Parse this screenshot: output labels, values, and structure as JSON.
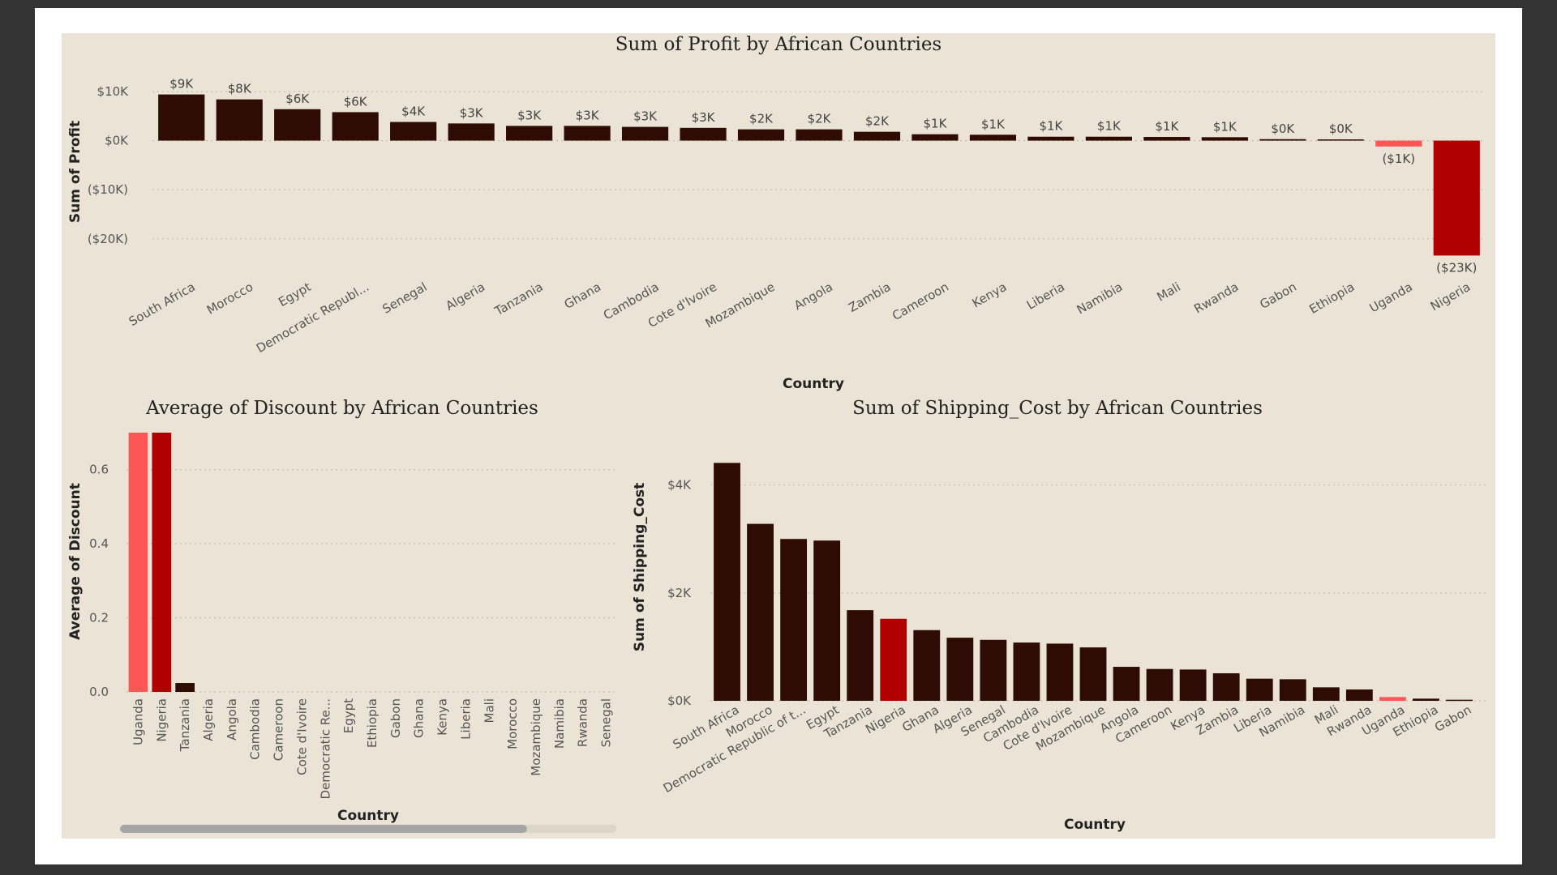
{
  "colors": {
    "page_bg": "#333333",
    "canvas_bg": "#ebe4d6",
    "bar_default": "#2e0c05",
    "bar_highlight_dark": "#b10000",
    "bar_highlight_light": "#fd5657",
    "scrollbar": "#a5a5a5"
  },
  "chart_data": [
    {
      "id": "profit",
      "type": "bar",
      "title": "Sum of Profit by African Countries",
      "xlabel": "Country",
      "ylabel": "Sum of Profit",
      "yticks": [
        10000,
        0,
        -10000,
        -20000
      ],
      "ytick_labels": [
        "$10K",
        "$0K",
        "($10K)",
        "($20K)"
      ],
      "ylim": [
        -23500,
        9500
      ],
      "grid": true,
      "categories": [
        "South Africa",
        "Morocco",
        "Egypt",
        "Democratic Republ...",
        "Senegal",
        "Algeria",
        "Tanzania",
        "Ghana",
        "Cambodia",
        "Cote d'Ivoire",
        "Mozambique",
        "Angola",
        "Zambia",
        "Cameroon",
        "Kenya",
        "Liberia",
        "Namibia",
        "Mali",
        "Rwanda",
        "Gabon",
        "Ethiopia",
        "Uganda",
        "Nigeria"
      ],
      "values": [
        9400,
        8400,
        6400,
        5800,
        3800,
        3500,
        3000,
        3000,
        2800,
        2600,
        2300,
        2300,
        1800,
        1300,
        1200,
        800,
        800,
        750,
        700,
        300,
        250,
        -1200,
        -23400
      ],
      "data_labels": [
        "$9K",
        "$8K",
        "$6K",
        "$6K",
        "$4K",
        "$3K",
        "$3K",
        "$3K",
        "$3K",
        "$3K",
        "$2K",
        "$2K",
        "$2K",
        "$1K",
        "$1K",
        "$1K",
        "$1K",
        "$1K",
        "$1K",
        "$0K",
        "$0K",
        "($1K)",
        "($23K)"
      ],
      "highlight": {
        "Uganda": "light",
        "Nigeria": "dark"
      }
    },
    {
      "id": "discount",
      "type": "bar",
      "title": "Average of Discount by African Countries",
      "xlabel": "Country",
      "ylabel": "Average of Discount",
      "yticks": [
        0,
        0.2,
        0.4,
        0.6
      ],
      "ytick_labels": [
        "0.0",
        "0.2",
        "0.4",
        "0.6"
      ],
      "ylim": [
        0,
        0.7
      ],
      "grid": true,
      "categories": [
        "Uganda",
        "Nigeria",
        "Tanzania",
        "Algeria",
        "Angola",
        "Cambodia",
        "Cameroon",
        "Cote d'Ivoire",
        "Democratic Re...",
        "Egypt",
        "Ethiopia",
        "Gabon",
        "Ghana",
        "Kenya",
        "Liberia",
        "Mali",
        "Morocco",
        "Mozambique",
        "Namibia",
        "Rwanda",
        "Senegal"
      ],
      "values": [
        0.7,
        0.7,
        0.024,
        0,
        0,
        0,
        0,
        0,
        0,
        0,
        0,
        0,
        0,
        0,
        0,
        0,
        0,
        0,
        0,
        0,
        0
      ],
      "highlight": {
        "Uganda": "light",
        "Nigeria": "dark"
      },
      "scroll_position": 0.82
    },
    {
      "id": "shipping",
      "type": "bar",
      "title": "Sum of Shipping_Cost by African Countries",
      "xlabel": "Country",
      "ylabel": "Sum of Shipping_Cost",
      "yticks": [
        0,
        2000,
        4000
      ],
      "ytick_labels": [
        "$0K",
        "$2K",
        "$4K"
      ],
      "ylim": [
        0,
        4400
      ],
      "grid": true,
      "categories": [
        "South Africa",
        "Morocco",
        "Democratic Republic of t...",
        "Egypt",
        "Tanzania",
        "Nigeria",
        "Ghana",
        "Algeria",
        "Senegal",
        "Cambodia",
        "Cote d'Ivoire",
        "Mozambique",
        "Angola",
        "Cameroon",
        "Kenya",
        "Zambia",
        "Liberia",
        "Namibia",
        "Mali",
        "Rwanda",
        "Uganda",
        "Ethiopia",
        "Gabon"
      ],
      "values": [
        4410,
        3280,
        3000,
        2970,
        1680,
        1520,
        1310,
        1170,
        1130,
        1080,
        1060,
        990,
        630,
        590,
        580,
        510,
        410,
        400,
        250,
        210,
        70,
        40,
        20
      ],
      "highlight": {
        "Nigeria": "dark",
        "Uganda": "light"
      }
    }
  ]
}
